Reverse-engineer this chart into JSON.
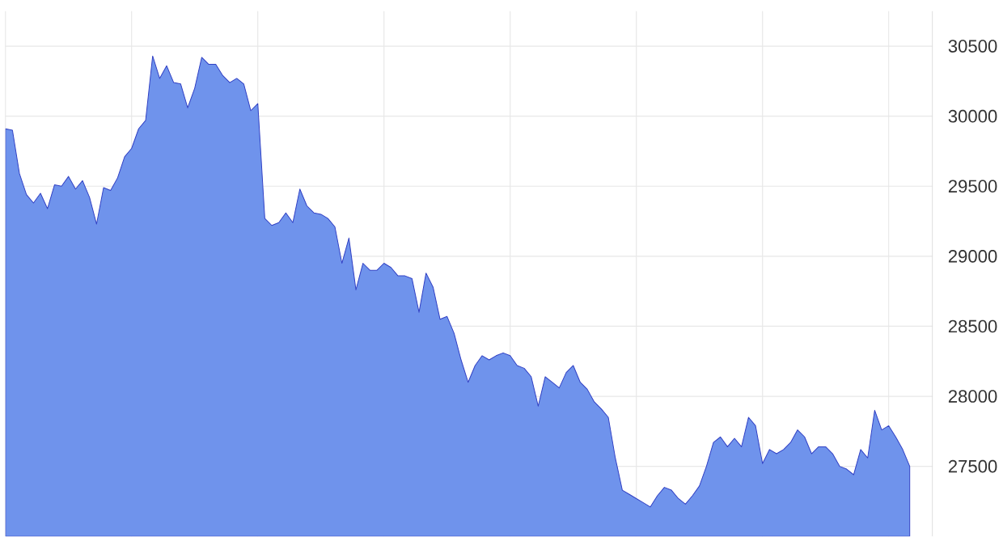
{
  "chart_data": {
    "type": "area",
    "categories": [
      null,
      null,
      null,
      null,
      null,
      null,
      null,
      null,
      null,
      null,
      null,
      null,
      null,
      null,
      null,
      null,
      null,
      null,
      null,
      null,
      null,
      null,
      null,
      null,
      null,
      null,
      null,
      null,
      null,
      null,
      null,
      null,
      null,
      null,
      null,
      null,
      null,
      null,
      null,
      null,
      null,
      null,
      null,
      null,
      null,
      null,
      null,
      null,
      null,
      null,
      null,
      null,
      null,
      null,
      null,
      null,
      null,
      null,
      null,
      null,
      null,
      null,
      null,
      null,
      null,
      null,
      null,
      null,
      null,
      null,
      null,
      null,
      null,
      null,
      null,
      null,
      null,
      null,
      null,
      null,
      null,
      null,
      null,
      null,
      null,
      null,
      null,
      null,
      null,
      null,
      null,
      null,
      null,
      null,
      null,
      null,
      null,
      null,
      null,
      null,
      null,
      null,
      null,
      null,
      null,
      null,
      null,
      null,
      null,
      null,
      null,
      null,
      null,
      null,
      null,
      null,
      null,
      null,
      null,
      null,
      null,
      null,
      null,
      null,
      null,
      null,
      null,
      null,
      null,
      null
    ],
    "series": [
      {
        "color": "#6f93ec",
        "values": [
          29910,
          29900,
          29590,
          29440,
          29380,
          29450,
          29340,
          29510,
          29500,
          29570,
          29480,
          29540,
          29420,
          29230,
          29490,
          29470,
          29560,
          29710,
          29770,
          29910,
          29970,
          30430,
          30270,
          30360,
          30240,
          30230,
          30060,
          30200,
          30420,
          30370,
          30370,
          30290,
          30240,
          30270,
          30230,
          30040,
          30090,
          29270,
          29220,
          29240,
          29310,
          29240,
          29480,
          29360,
          29310,
          29300,
          29270,
          29210,
          28950,
          29130,
          28760,
          28950,
          28900,
          28900,
          28950,
          28920,
          28860,
          28860,
          28840,
          28600,
          28880,
          28780,
          28550,
          28570,
          28450,
          28260,
          28100,
          28220,
          28290,
          28260,
          28290,
          28310,
          28290,
          28220,
          28200,
          28140,
          27930,
          28140,
          28100,
          28060,
          28170,
          28220,
          28100,
          28050,
          27960,
          27910,
          27850,
          27560,
          27330,
          27300,
          27270,
          27240,
          27210,
          27290,
          27350,
          27330,
          27270,
          27230,
          27290,
          27360,
          27500,
          27670,
          27710,
          27640,
          27700,
          27640,
          27850,
          27790,
          27520,
          27620,
          27590,
          27620,
          27670,
          27760,
          27710,
          27590,
          27640,
          27640,
          27590,
          27500,
          27480,
          27440,
          27620,
          27560,
          27900,
          27760,
          27790,
          27710,
          27620,
          27500
        ]
      }
    ],
    "ylim": [
      27000,
      30750
    ],
    "yticks": [
      27500,
      28000,
      28500,
      29000,
      29500,
      30000,
      30500
    ],
    "tick_labels": "y",
    "grid": true
  }
}
